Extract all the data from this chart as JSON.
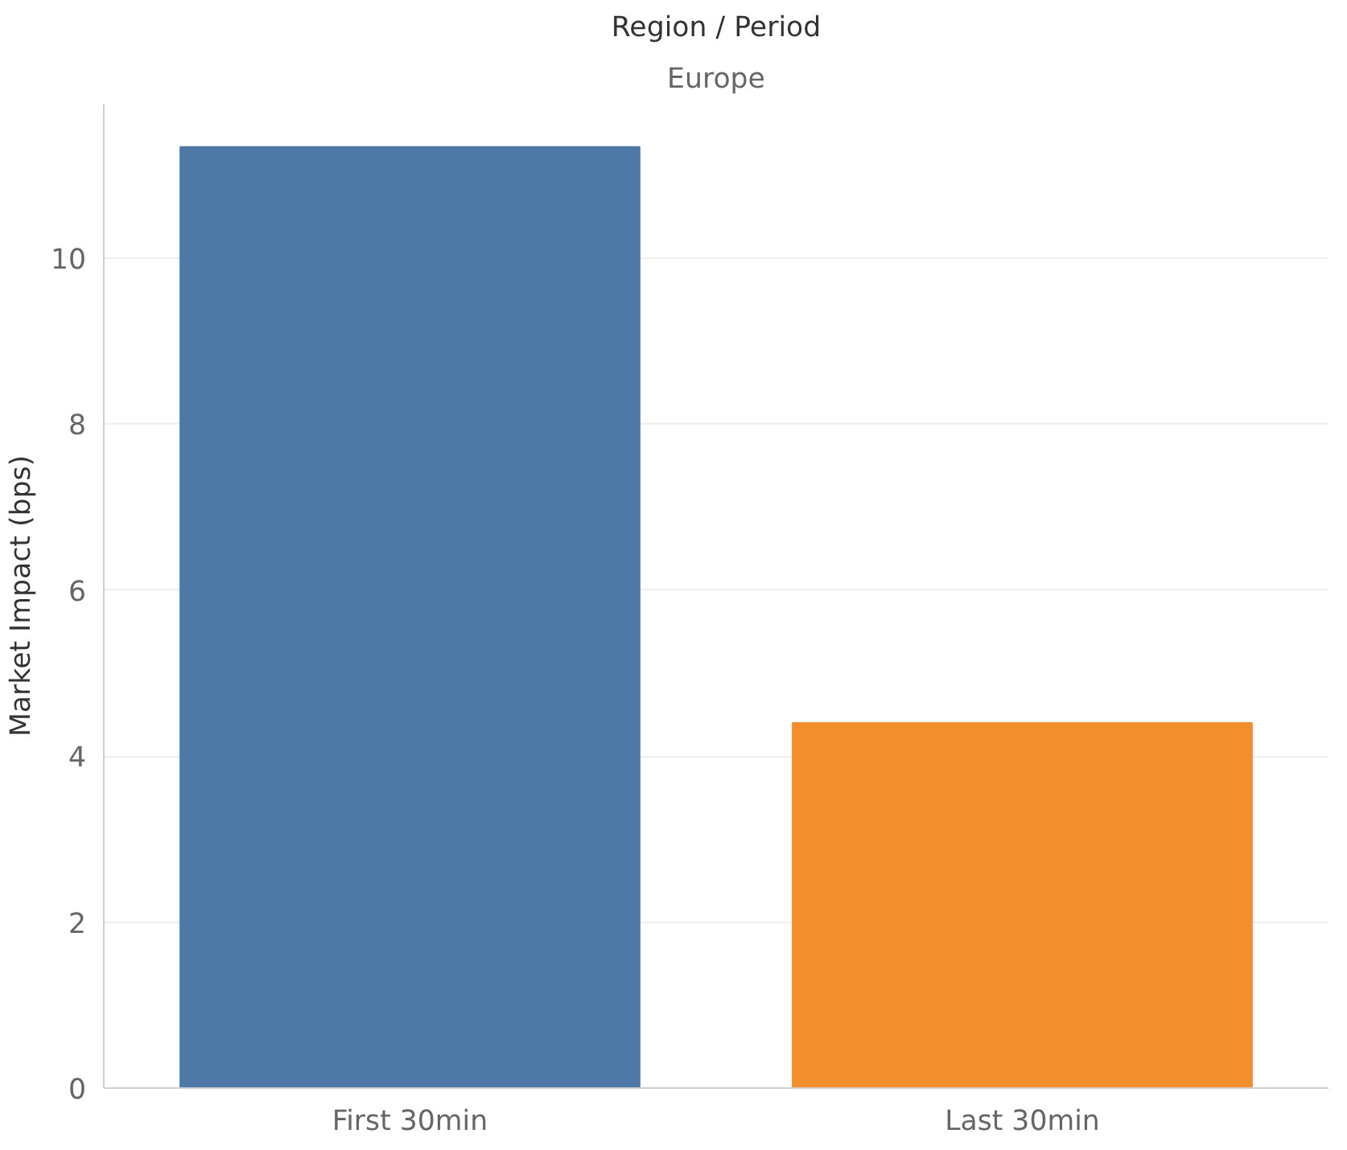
{
  "chart_data": {
    "type": "bar",
    "title": "Region / Period",
    "subtitle": "Europe",
    "ylabel": "Market Impact (bps)",
    "categories": [
      "First 30min",
      "Last 30min"
    ],
    "values": [
      11.34,
      4.4
    ],
    "colors": [
      "#4e79a7",
      "#f28e2b"
    ],
    "ylim": [
      0,
      11.86
    ],
    "yticks": [
      0,
      2,
      4,
      6,
      8,
      10
    ],
    "grid": "y"
  }
}
